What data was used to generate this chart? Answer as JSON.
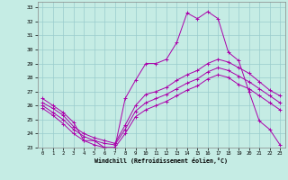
{
  "xlabel": "Windchill (Refroidissement éolien,°C)",
  "bg_color": "#c5ece4",
  "line_color": "#aa00aa",
  "grid_color": "#99cccc",
  "xlim": [
    -0.5,
    23.5
  ],
  "ylim": [
    23,
    33.4
  ],
  "yticks": [
    23,
    24,
    25,
    26,
    27,
    28,
    29,
    30,
    31,
    32,
    33
  ],
  "xticks": [
    0,
    1,
    2,
    3,
    4,
    5,
    6,
    7,
    8,
    9,
    10,
    11,
    12,
    13,
    14,
    15,
    16,
    17,
    18,
    19,
    20,
    21,
    22,
    23
  ],
  "series1": [
    26.5,
    26.0,
    25.5,
    24.8,
    23.5,
    23.5,
    23.0,
    23.0,
    26.5,
    27.8,
    29.0,
    29.0,
    29.3,
    30.5,
    32.6,
    32.2,
    32.7,
    32.2,
    29.8,
    29.2,
    27.0,
    24.9,
    24.3,
    23.2
  ],
  "series2": [
    26.2,
    25.8,
    25.3,
    24.5,
    24.0,
    23.7,
    23.5,
    23.3,
    24.6,
    26.0,
    26.8,
    27.0,
    27.3,
    27.8,
    28.2,
    28.5,
    29.0,
    29.3,
    29.1,
    28.7,
    28.3,
    27.7,
    27.1,
    26.7
  ],
  "series3": [
    26.0,
    25.5,
    25.0,
    24.3,
    23.8,
    23.5,
    23.3,
    23.2,
    24.3,
    25.6,
    26.2,
    26.5,
    26.8,
    27.2,
    27.6,
    27.9,
    28.4,
    28.7,
    28.5,
    28.1,
    27.7,
    27.2,
    26.7,
    26.2
  ],
  "series4": [
    25.8,
    25.3,
    24.7,
    24.0,
    23.5,
    23.2,
    23.0,
    23.0,
    24.0,
    25.2,
    25.7,
    26.0,
    26.3,
    26.7,
    27.1,
    27.4,
    27.9,
    28.2,
    28.0,
    27.5,
    27.2,
    26.7,
    26.2,
    25.7
  ]
}
